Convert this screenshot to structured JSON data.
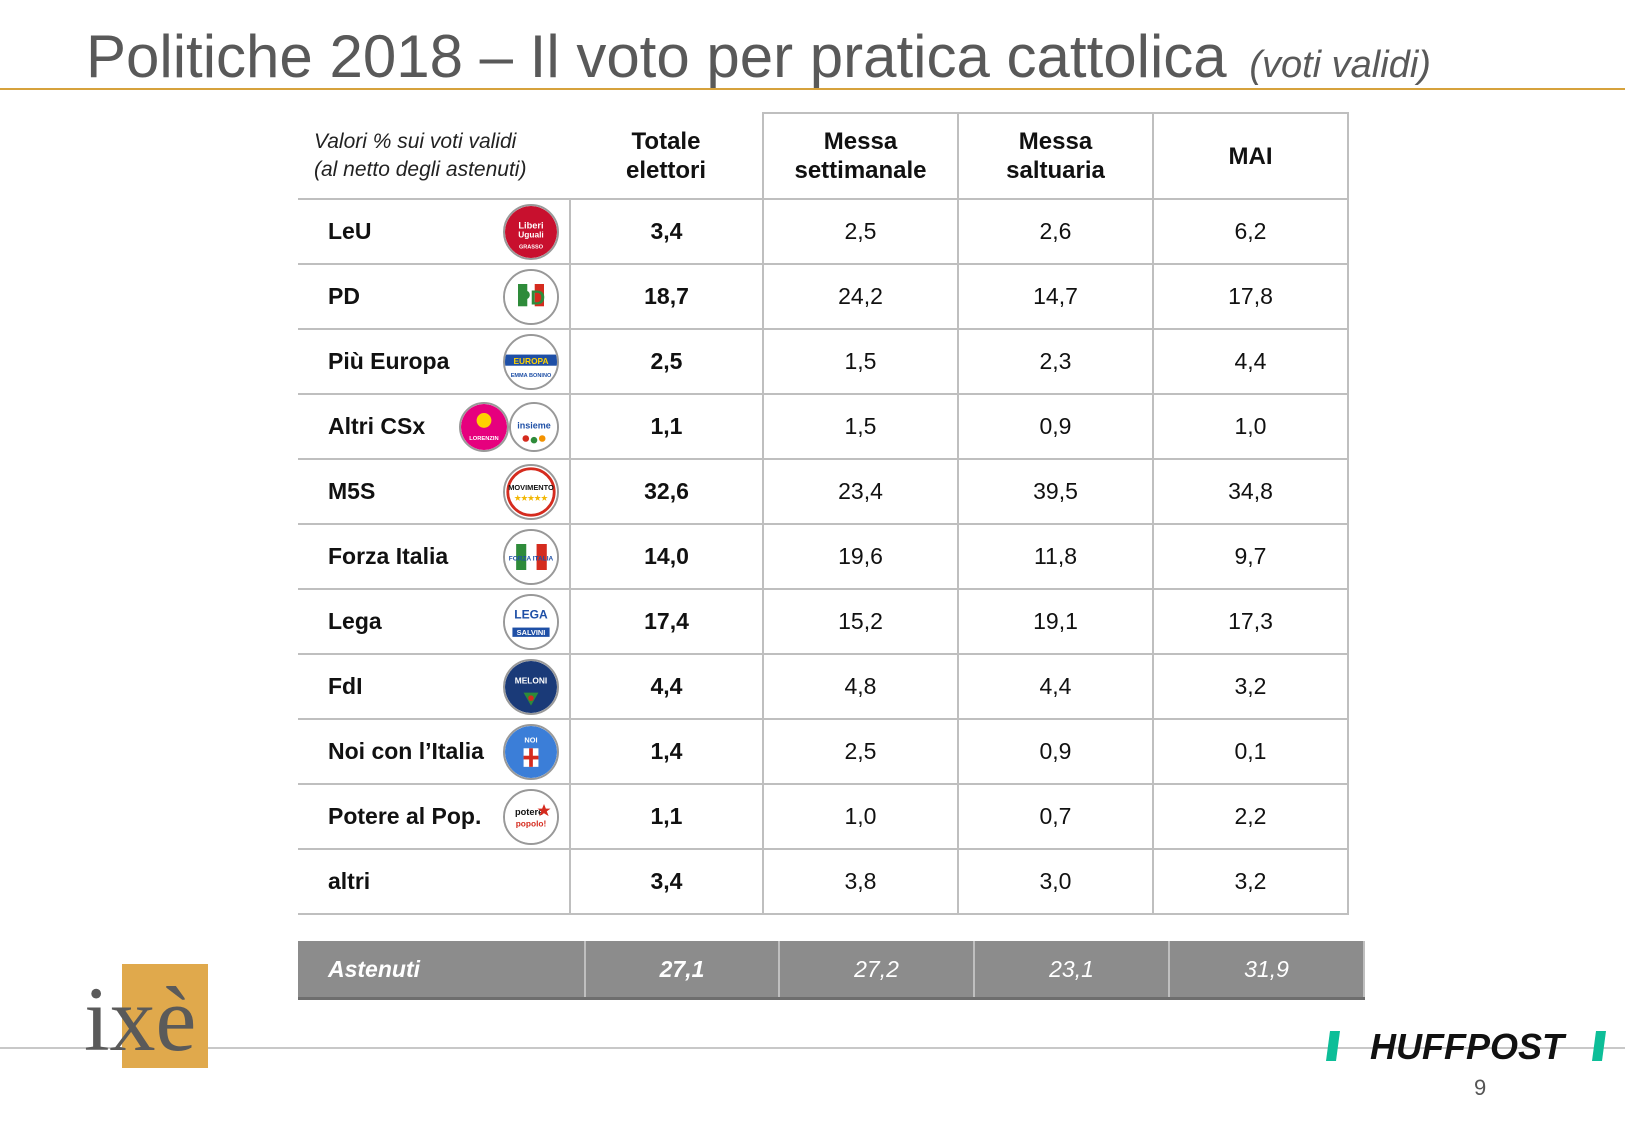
{
  "title": "Politiche 2018 – Il voto per pratica cattolica",
  "subtitle": "(voti validi)",
  "table": {
    "note_line1": "Valori % sui voti validi",
    "note_line2": "(al netto degli astenuti)",
    "columns": [
      {
        "line1": "Totale",
        "line2": "elettori"
      },
      {
        "line1": "Messa",
        "line2": "settimanale"
      },
      {
        "line1": "Messa",
        "line2": "saltuaria"
      },
      {
        "line1": "MAI",
        "line2": ""
      }
    ]
  },
  "chart_data": {
    "type": "table",
    "title": "Politiche 2018 – Il voto per pratica cattolica (voti validi)",
    "columns": [
      "Totale elettori",
      "Messa settimanale",
      "Messa saltuaria",
      "MAI"
    ],
    "rows": [
      {
        "party": "LeU",
        "values": [
          "3,4",
          "2,5",
          "2,6",
          "6,2"
        ],
        "logo": "leu-logo"
      },
      {
        "party": "PD",
        "values": [
          "18,7",
          "24,2",
          "14,7",
          "17,8"
        ],
        "logo": "pd-logo"
      },
      {
        "party": "Più Europa",
        "values": [
          "2,5",
          "1,5",
          "2,3",
          "4,4"
        ],
        "logo": "piu-europa-logo"
      },
      {
        "party": "Altri CSx",
        "values": [
          "1,1",
          "1,5",
          "0,9",
          "1,0"
        ],
        "logo": "altri-csx-logos"
      },
      {
        "party": "M5S",
        "values": [
          "32,6",
          "23,4",
          "39,5",
          "34,8"
        ],
        "logo": "m5s-logo"
      },
      {
        "party": "Forza Italia",
        "values": [
          "14,0",
          "19,6",
          "11,8",
          "9,7"
        ],
        "logo": "forza-italia-logo"
      },
      {
        "party": "Lega",
        "values": [
          "17,4",
          "15,2",
          "19,1",
          "17,3"
        ],
        "logo": "lega-logo"
      },
      {
        "party": "FdI",
        "values": [
          "4,4",
          "4,8",
          "4,4",
          "3,2"
        ],
        "logo": "fdi-logo"
      },
      {
        "party": "Noi con l’Italia",
        "values": [
          "1,4",
          "2,5",
          "0,9",
          "0,1"
        ],
        "logo": "noi-con-italia-logo"
      },
      {
        "party": "Potere al Pop.",
        "values": [
          "1,1",
          "1,0",
          "0,7",
          "2,2"
        ],
        "logo": "potere-al-popolo-logo"
      },
      {
        "party": "altri",
        "values": [
          "3,4",
          "3,8",
          "3,0",
          "3,2"
        ],
        "logo": ""
      }
    ],
    "abstained": {
      "label": "Astenuti",
      "values": [
        "27,1",
        "27,2",
        "23,1",
        "31,9"
      ]
    }
  },
  "logos": {
    "leu": "Liberi Uguali",
    "leu_sub": "GRASSO",
    "pd_main": "PD",
    "europa": "EUROPA",
    "emma": "EMMA BONINO",
    "lorenzin": "LORENZIN",
    "insieme": "insieme",
    "m5s": "MOVIMENTO",
    "forza": "FORZA ITALIA",
    "lega": "LEGA",
    "salvini": "SALVINI",
    "meloni": "MELONI",
    "noi": "NOI CON L'ITALIA",
    "potere": "potere al popolo!"
  },
  "brand": {
    "ixe": "ixè",
    "huffpost": "HUFFPOST",
    "page_number": "9"
  },
  "colors": {
    "title": "#595959",
    "accent_rule": "#d6a23c",
    "abstained_bg": "#8c8c8c",
    "ixe_gold": "#e0a94c",
    "huffpost_green": "#0dbe98"
  }
}
